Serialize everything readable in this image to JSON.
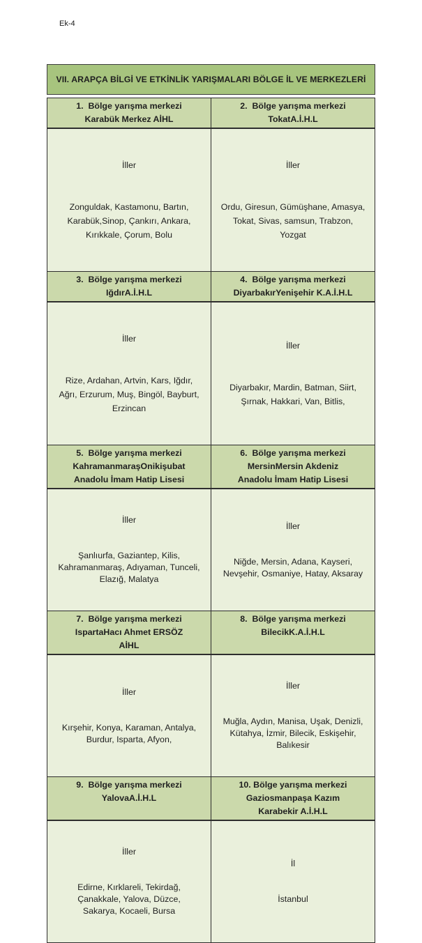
{
  "page": {
    "tag": "Ek-4"
  },
  "title": "VII. ARAPÇA BİLGİ VE ETKİNLİK YARIŞMALARI BÖLGE İL VE MERKEZLERİ",
  "colors": {
    "title_bg": "#a7c47e",
    "header_bg": "#cbd9ab",
    "body_bg": "#eaf0dc",
    "border": "#2d2d2d"
  },
  "table": {
    "rows": [
      {
        "left": {
          "header": "1.  Bölge yarışma merkezi\nKarabük Merkez AİHL",
          "label": "İller",
          "provinces": "Zonguldak, Kastamonu, Bartın,\nKarabük,Sinop, Çankırı, Ankara,\nKırıkkale, Çorum, Bolu"
        },
        "right": {
          "header": "2.  Bölge yarışma merkezi\nTokatA.İ.H.L",
          "label": "İller",
          "provinces": "Ordu, Giresun, Gümüşhane, Amasya,\nTokat, Sivas, samsun, Trabzon,\nYozgat"
        }
      },
      {
        "left": {
          "header": "3.  Bölge yarışma merkezi\nIğdırA.İ.H.L",
          "label": "İller",
          "provinces": "Rize, Ardahan, Artvin, Kars, Iğdır,\nAğrı, Erzurum, Muş, Bingöl, Bayburt,\nErzincan"
        },
        "right": {
          "header": "4.  Bölge yarışma merkezi\nDiyarbakırYenişehir K.A.İ.H.L",
          "label": "İller",
          "provinces": "Diyarbakır, Mardin, Batman, Siirt,\nŞırnak, Hakkari, Van, Bitlis,"
        }
      },
      {
        "left": {
          "header": "5.  Bölge yarışma merkezi\nKahramanmaraşOnikişubat\nAnadolu İmam Hatip Lisesi",
          "label": "İller",
          "provinces": "Şanlıurfa, Gaziantep, Kilis,\nKahramanmaraş, Adıyaman, Tunceli,\nElazığ, Malatya"
        },
        "right": {
          "header": "6.  Bölge yarışma merkezi\nMersinMersin Akdeniz\nAnadolu İmam Hatip Lisesi",
          "label": "İller",
          "provinces": "Niğde, Mersin, Adana, Kayseri,\nNevşehir, Osmaniye, Hatay, Aksaray"
        }
      },
      {
        "left": {
          "header": "7.  Bölge yarışma merkezi\nIspartaHacı Ahmet ERSÖZ\nAİHL",
          "label": "İller",
          "provinces": "Kırşehir, Konya, Karaman, Antalya,\nBurdur, Isparta, Afyon,"
        },
        "right": {
          "header": "8.  Bölge yarışma merkezi\nBilecikK.A.İ.H.L",
          "label": "İller",
          "provinces": "Muğla, Aydın, Manisa, Uşak, Denizli,\nKütahya, İzmir, Bilecik, Eskişehir,\nBalıkesir"
        }
      },
      {
        "left": {
          "header": "9.  Bölge yarışma merkezi\nYalovaA.İ.H.L",
          "label": "İller",
          "provinces": "Edirne, Kırklareli, Tekirdağ,\nÇanakkale, Yalova, Düzce,\nSakarya, Kocaeli, Bursa"
        },
        "right": {
          "header": "10. Bölge yarışma merkezi\nGaziosmanpaşa Kazım\nKarabekir A.İ.H.L",
          "label": "İl",
          "provinces": "İstanbul"
        }
      }
    ]
  }
}
